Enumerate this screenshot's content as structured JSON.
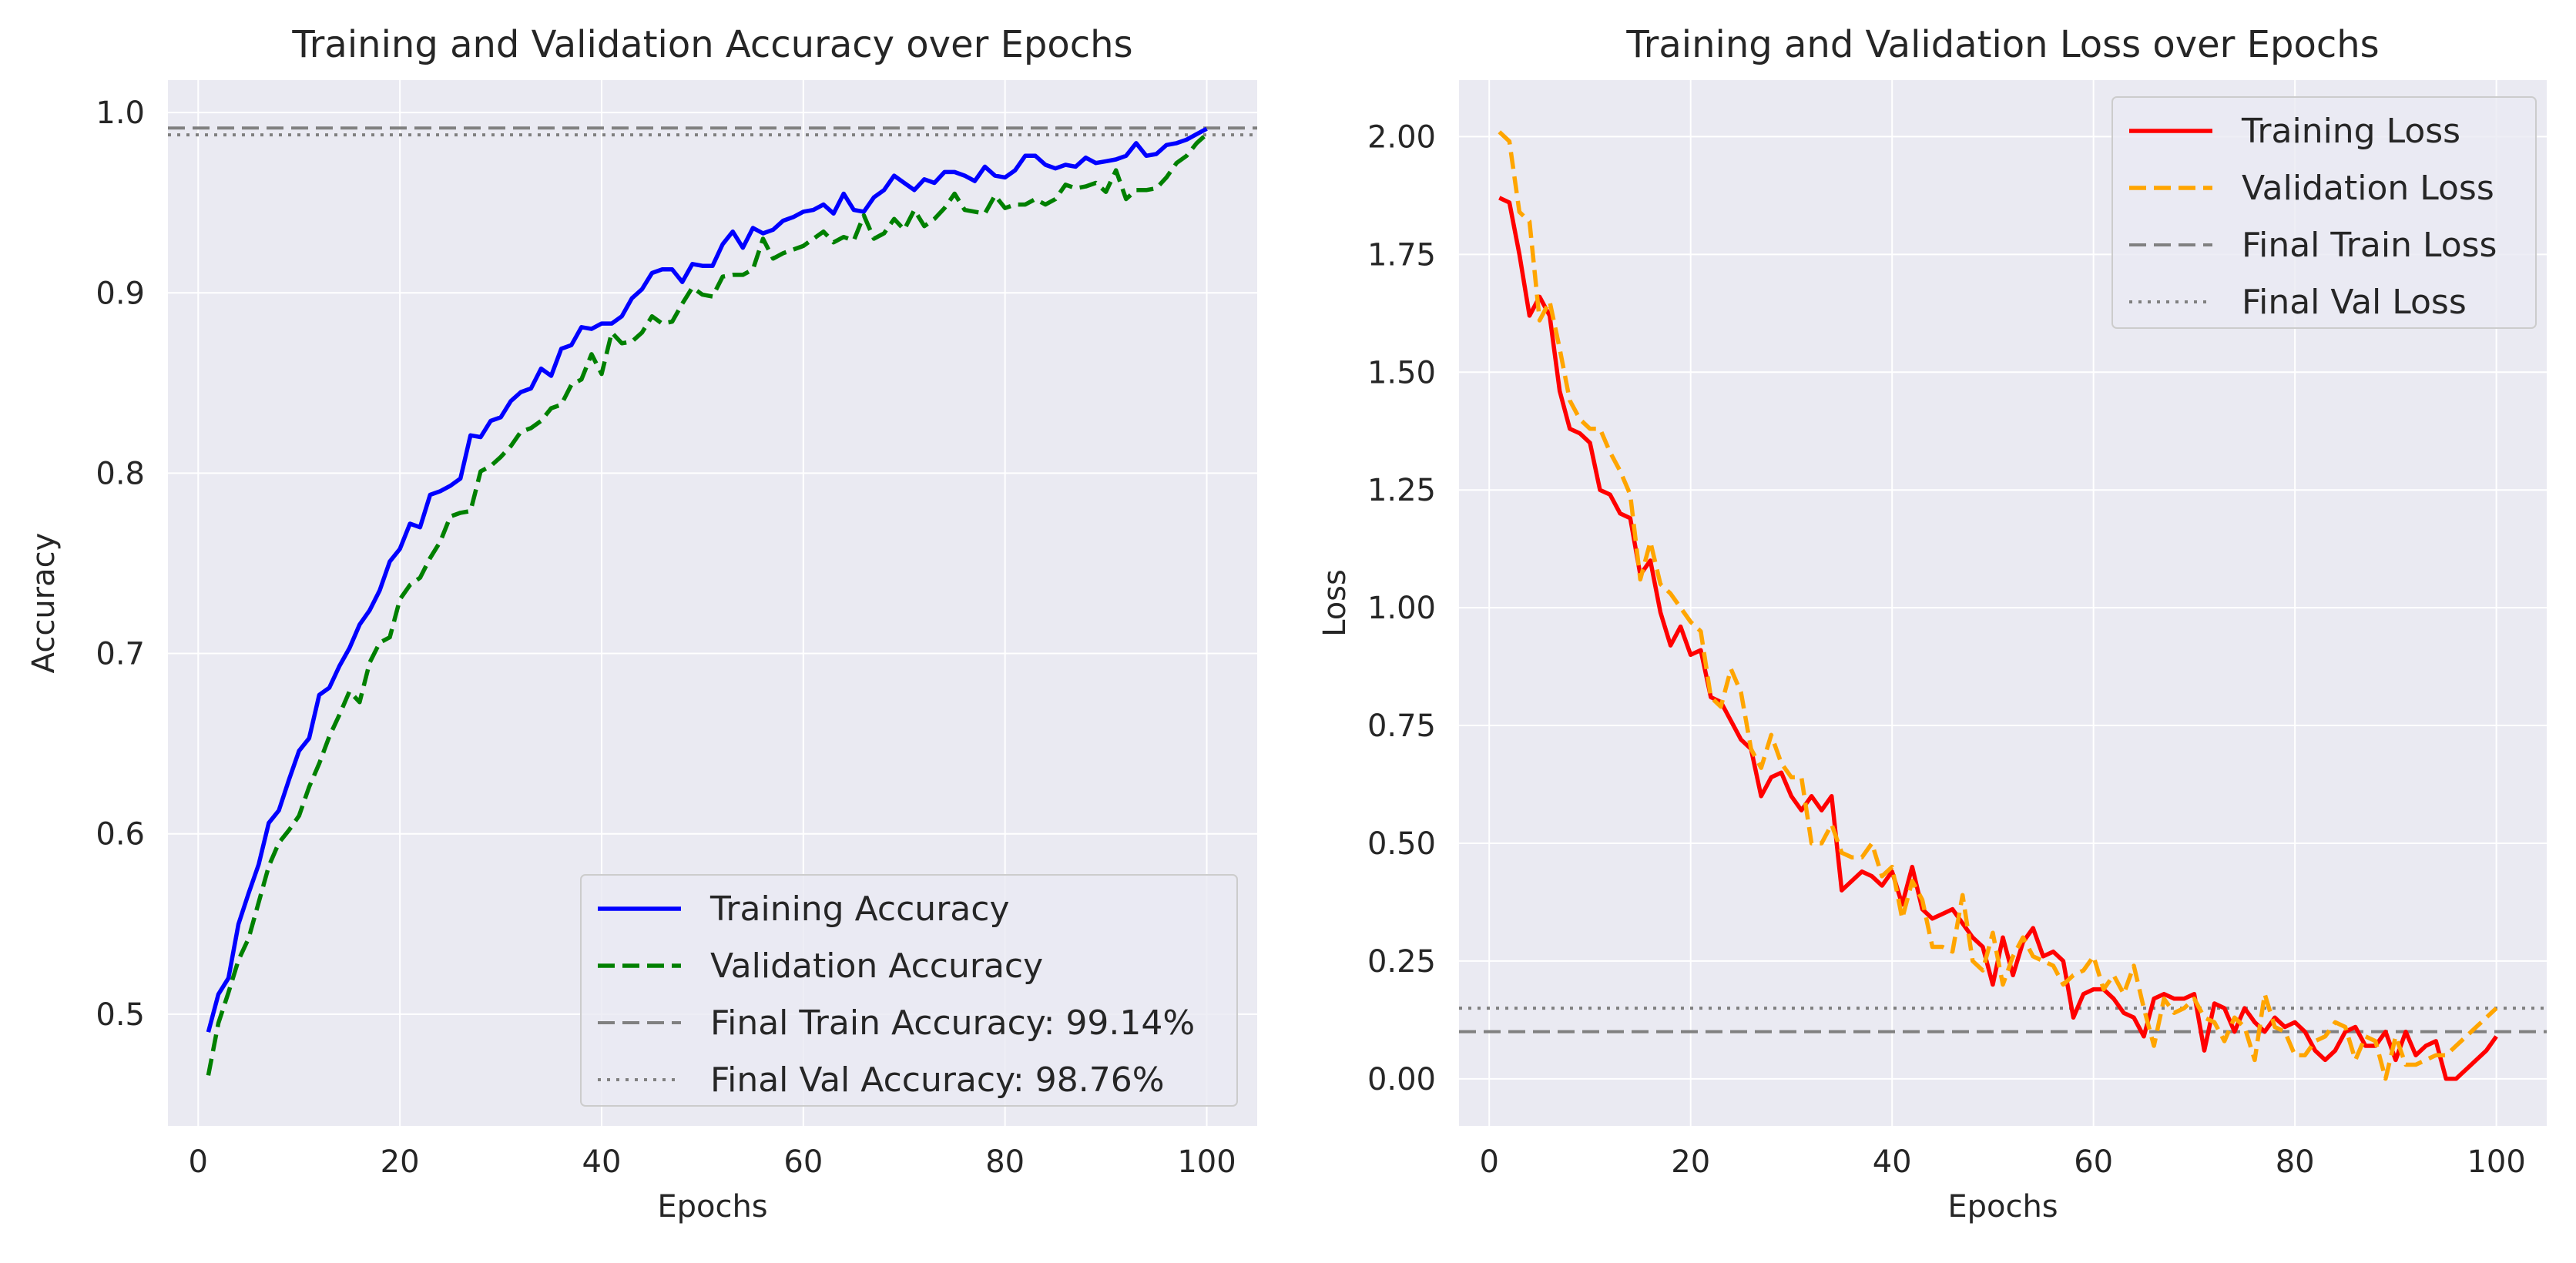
{
  "chart_data": [
    {
      "type": "line",
      "title": "Training and Validation Accuracy over Epochs",
      "xlabel": "Epochs",
      "ylabel": "Accuracy",
      "xlim": [
        -3,
        105
      ],
      "ylim": [
        0.438,
        1.018
      ],
      "xticks": [
        0,
        20,
        40,
        60,
        80,
        100
      ],
      "yticks": [
        0.5,
        0.6,
        0.7,
        0.8,
        0.9,
        1.0
      ],
      "ytick_labels": [
        "0.5",
        "0.6",
        "0.7",
        "0.8",
        "0.9",
        "1.0"
      ],
      "grid": true,
      "legend_position": "lower-right",
      "x": [
        1,
        2,
        3,
        4,
        5,
        6,
        7,
        8,
        9,
        10,
        11,
        12,
        13,
        14,
        15,
        16,
        17,
        18,
        19,
        20,
        21,
        22,
        23,
        24,
        25,
        26,
        27,
        28,
        29,
        30,
        31,
        32,
        33,
        34,
        35,
        36,
        37,
        38,
        39,
        40,
        41,
        42,
        43,
        44,
        45,
        46,
        47,
        48,
        49,
        50,
        51,
        52,
        53,
        54,
        55,
        56,
        57,
        58,
        59,
        60,
        61,
        62,
        63,
        64,
        65,
        66,
        67,
        68,
        69,
        70,
        71,
        72,
        73,
        74,
        75,
        76,
        77,
        78,
        79,
        80,
        81,
        82,
        83,
        84,
        85,
        86,
        87,
        88,
        89,
        90,
        91,
        92,
        93,
        94,
        95,
        96,
        97,
        98,
        99,
        100
      ],
      "series": [
        {
          "name": "Training Accuracy",
          "color": "#0000ff",
          "style": "solid",
          "values": [
            0.49,
            0.511,
            0.52,
            0.55,
            0.567,
            0.583,
            0.606,
            0.613,
            0.63,
            0.646,
            0.653,
            0.677,
            0.681,
            0.693,
            0.703,
            0.716,
            0.724,
            0.735,
            0.751,
            0.758,
            0.772,
            0.77,
            0.788,
            0.79,
            0.793,
            0.797,
            0.821,
            0.82,
            0.829,
            0.831,
            0.84,
            0.845,
            0.847,
            0.858,
            0.854,
            0.869,
            0.871,
            0.881,
            0.88,
            0.883,
            0.883,
            0.887,
            0.897,
            0.902,
            0.911,
            0.913,
            0.913,
            0.906,
            0.916,
            0.915,
            0.915,
            0.927,
            0.934,
            0.925,
            0.936,
            0.933,
            0.935,
            0.94,
            0.942,
            0.945,
            0.946,
            0.949,
            0.944,
            0.955,
            0.946,
            0.945,
            0.953,
            0.957,
            0.965,
            0.961,
            0.957,
            0.963,
            0.961,
            0.967,
            0.967,
            0.965,
            0.962,
            0.97,
            0.965,
            0.964,
            0.968,
            0.976,
            0.976,
            0.971,
            0.969,
            0.971,
            0.97,
            0.975,
            0.972,
            0.973,
            0.974,
            0.976,
            0.983,
            0.976,
            0.977,
            0.982,
            0.983,
            0.985,
            0.988,
            0.991
          ]
        },
        {
          "name": "Validation Accuracy",
          "color": "#008000",
          "style": "dashed",
          "values": [
            0.466,
            0.495,
            0.512,
            0.53,
            0.542,
            0.562,
            0.582,
            0.595,
            0.602,
            0.61,
            0.626,
            0.639,
            0.654,
            0.666,
            0.679,
            0.673,
            0.695,
            0.706,
            0.709,
            0.73,
            0.738,
            0.742,
            0.753,
            0.762,
            0.776,
            0.778,
            0.779,
            0.801,
            0.804,
            0.809,
            0.815,
            0.823,
            0.825,
            0.829,
            0.836,
            0.838,
            0.849,
            0.852,
            0.866,
            0.855,
            0.878,
            0.872,
            0.873,
            0.878,
            0.887,
            0.883,
            0.884,
            0.894,
            0.903,
            0.899,
            0.898,
            0.909,
            0.91,
            0.91,
            0.913,
            0.93,
            0.919,
            0.922,
            0.924,
            0.926,
            0.93,
            0.934,
            0.928,
            0.931,
            0.929,
            0.943,
            0.93,
            0.933,
            0.941,
            0.935,
            0.946,
            0.937,
            0.941,
            0.947,
            0.955,
            0.946,
            0.945,
            0.944,
            0.954,
            0.947,
            0.949,
            0.949,
            0.952,
            0.949,
            0.952,
            0.96,
            0.958,
            0.959,
            0.961,
            0.956,
            0.968,
            0.952,
            0.957,
            0.957,
            0.958,
            0.964,
            0.972,
            0.976,
            0.983,
            0.988
          ]
        }
      ],
      "reference_lines": [
        {
          "name": "Final Train Accuracy: 99.14%",
          "value": 0.9914,
          "color": "#808080",
          "style": "dashed"
        },
        {
          "name": "Final Val Accuracy: 98.76%",
          "value": 0.9876,
          "color": "#808080",
          "style": "dotted"
        }
      ]
    },
    {
      "type": "line",
      "title": "Training and Validation Loss over Epochs",
      "xlabel": "Epochs",
      "ylabel": "Loss",
      "xlim": [
        -3,
        105
      ],
      "ylim": [
        -0.1,
        2.12
      ],
      "xticks": [
        0,
        20,
        40,
        60,
        80,
        100
      ],
      "yticks": [
        0.0,
        0.25,
        0.5,
        0.75,
        1.0,
        1.25,
        1.5,
        1.75,
        2.0
      ],
      "ytick_labels": [
        "0.00",
        "0.25",
        "0.50",
        "0.75",
        "1.00",
        "1.25",
        "1.50",
        "1.75",
        "2.00"
      ],
      "grid": true,
      "legend_position": "upper-right",
      "x": [
        1,
        2,
        3,
        4,
        5,
        6,
        7,
        8,
        9,
        10,
        11,
        12,
        13,
        14,
        15,
        16,
        17,
        18,
        19,
        20,
        21,
        22,
        23,
        24,
        25,
        26,
        27,
        28,
        29,
        30,
        31,
        32,
        33,
        34,
        35,
        36,
        37,
        38,
        39,
        40,
        41,
        42,
        43,
        44,
        45,
        46,
        47,
        48,
        49,
        50,
        51,
        52,
        53,
        54,
        55,
        56,
        57,
        58,
        59,
        60,
        61,
        62,
        63,
        64,
        65,
        66,
        67,
        68,
        69,
        70,
        71,
        72,
        73,
        74,
        75,
        76,
        77,
        78,
        79,
        80,
        81,
        82,
        83,
        84,
        85,
        86,
        87,
        88,
        89,
        90,
        91,
        92,
        93,
        94,
        95,
        96,
        97,
        98,
        99,
        100
      ],
      "series": [
        {
          "name": "Training Loss",
          "color": "#ff0000",
          "style": "solid",
          "values": [
            1.87,
            1.86,
            1.75,
            1.62,
            1.66,
            1.62,
            1.46,
            1.38,
            1.37,
            1.35,
            1.25,
            1.24,
            1.2,
            1.19,
            1.07,
            1.1,
            0.99,
            0.92,
            0.96,
            0.9,
            0.91,
            0.81,
            0.8,
            0.76,
            0.72,
            0.7,
            0.6,
            0.64,
            0.65,
            0.6,
            0.57,
            0.6,
            0.57,
            0.6,
            0.4,
            0.42,
            0.44,
            0.43,
            0.41,
            0.44,
            0.37,
            0.45,
            0.36,
            0.34,
            0.35,
            0.36,
            0.33,
            0.3,
            0.28,
            0.2,
            0.3,
            0.22,
            0.29,
            0.32,
            0.26,
            0.27,
            0.25,
            0.13,
            0.18,
            0.19,
            0.19,
            0.17,
            0.14,
            0.13,
            0.09,
            0.17,
            0.18,
            0.17,
            0.17,
            0.18,
            0.06,
            0.16,
            0.15,
            0.1,
            0.15,
            0.12,
            0.1,
            0.13,
            0.11,
            0.12,
            0.1,
            0.06,
            0.04,
            0.06,
            0.1,
            0.11,
            0.07,
            0.07,
            0.1,
            0.04,
            0.1,
            0.05,
            0.07,
            0.08,
            0.0,
            0.0,
            0.02,
            0.04,
            0.06,
            0.09
          ]
        },
        {
          "name": "Validation Loss",
          "color": "#ffa500",
          "style": "dashed",
          "values": [
            2.01,
            1.99,
            1.84,
            1.82,
            1.61,
            1.65,
            1.55,
            1.44,
            1.4,
            1.38,
            1.38,
            1.33,
            1.29,
            1.24,
            1.06,
            1.14,
            1.05,
            1.03,
            1.0,
            0.97,
            0.95,
            0.81,
            0.79,
            0.87,
            0.82,
            0.7,
            0.66,
            0.73,
            0.67,
            0.64,
            0.64,
            0.5,
            0.5,
            0.54,
            0.48,
            0.47,
            0.47,
            0.5,
            0.43,
            0.45,
            0.34,
            0.42,
            0.38,
            0.28,
            0.28,
            0.27,
            0.39,
            0.25,
            0.23,
            0.31,
            0.2,
            0.26,
            0.3,
            0.26,
            0.25,
            0.24,
            0.2,
            0.22,
            0.23,
            0.26,
            0.19,
            0.22,
            0.18,
            0.24,
            0.15,
            0.07,
            0.17,
            0.14,
            0.15,
            0.17,
            0.13,
            0.12,
            0.08,
            0.13,
            0.11,
            0.04,
            0.18,
            0.11,
            0.1,
            0.05,
            0.05,
            0.08,
            0.09,
            0.12,
            0.11,
            0.04,
            0.09,
            0.08,
            0.0,
            0.09,
            0.03,
            0.03,
            0.04,
            0.05,
            0.05,
            0.07,
            0.09,
            0.11,
            0.13,
            0.15
          ]
        }
      ],
      "reference_lines": [
        {
          "name": "Final Train Loss",
          "value": 0.1,
          "color": "#808080",
          "style": "dashed"
        },
        {
          "name": "Final Val Loss",
          "value": 0.15,
          "color": "#808080",
          "style": "dotted"
        }
      ]
    }
  ]
}
